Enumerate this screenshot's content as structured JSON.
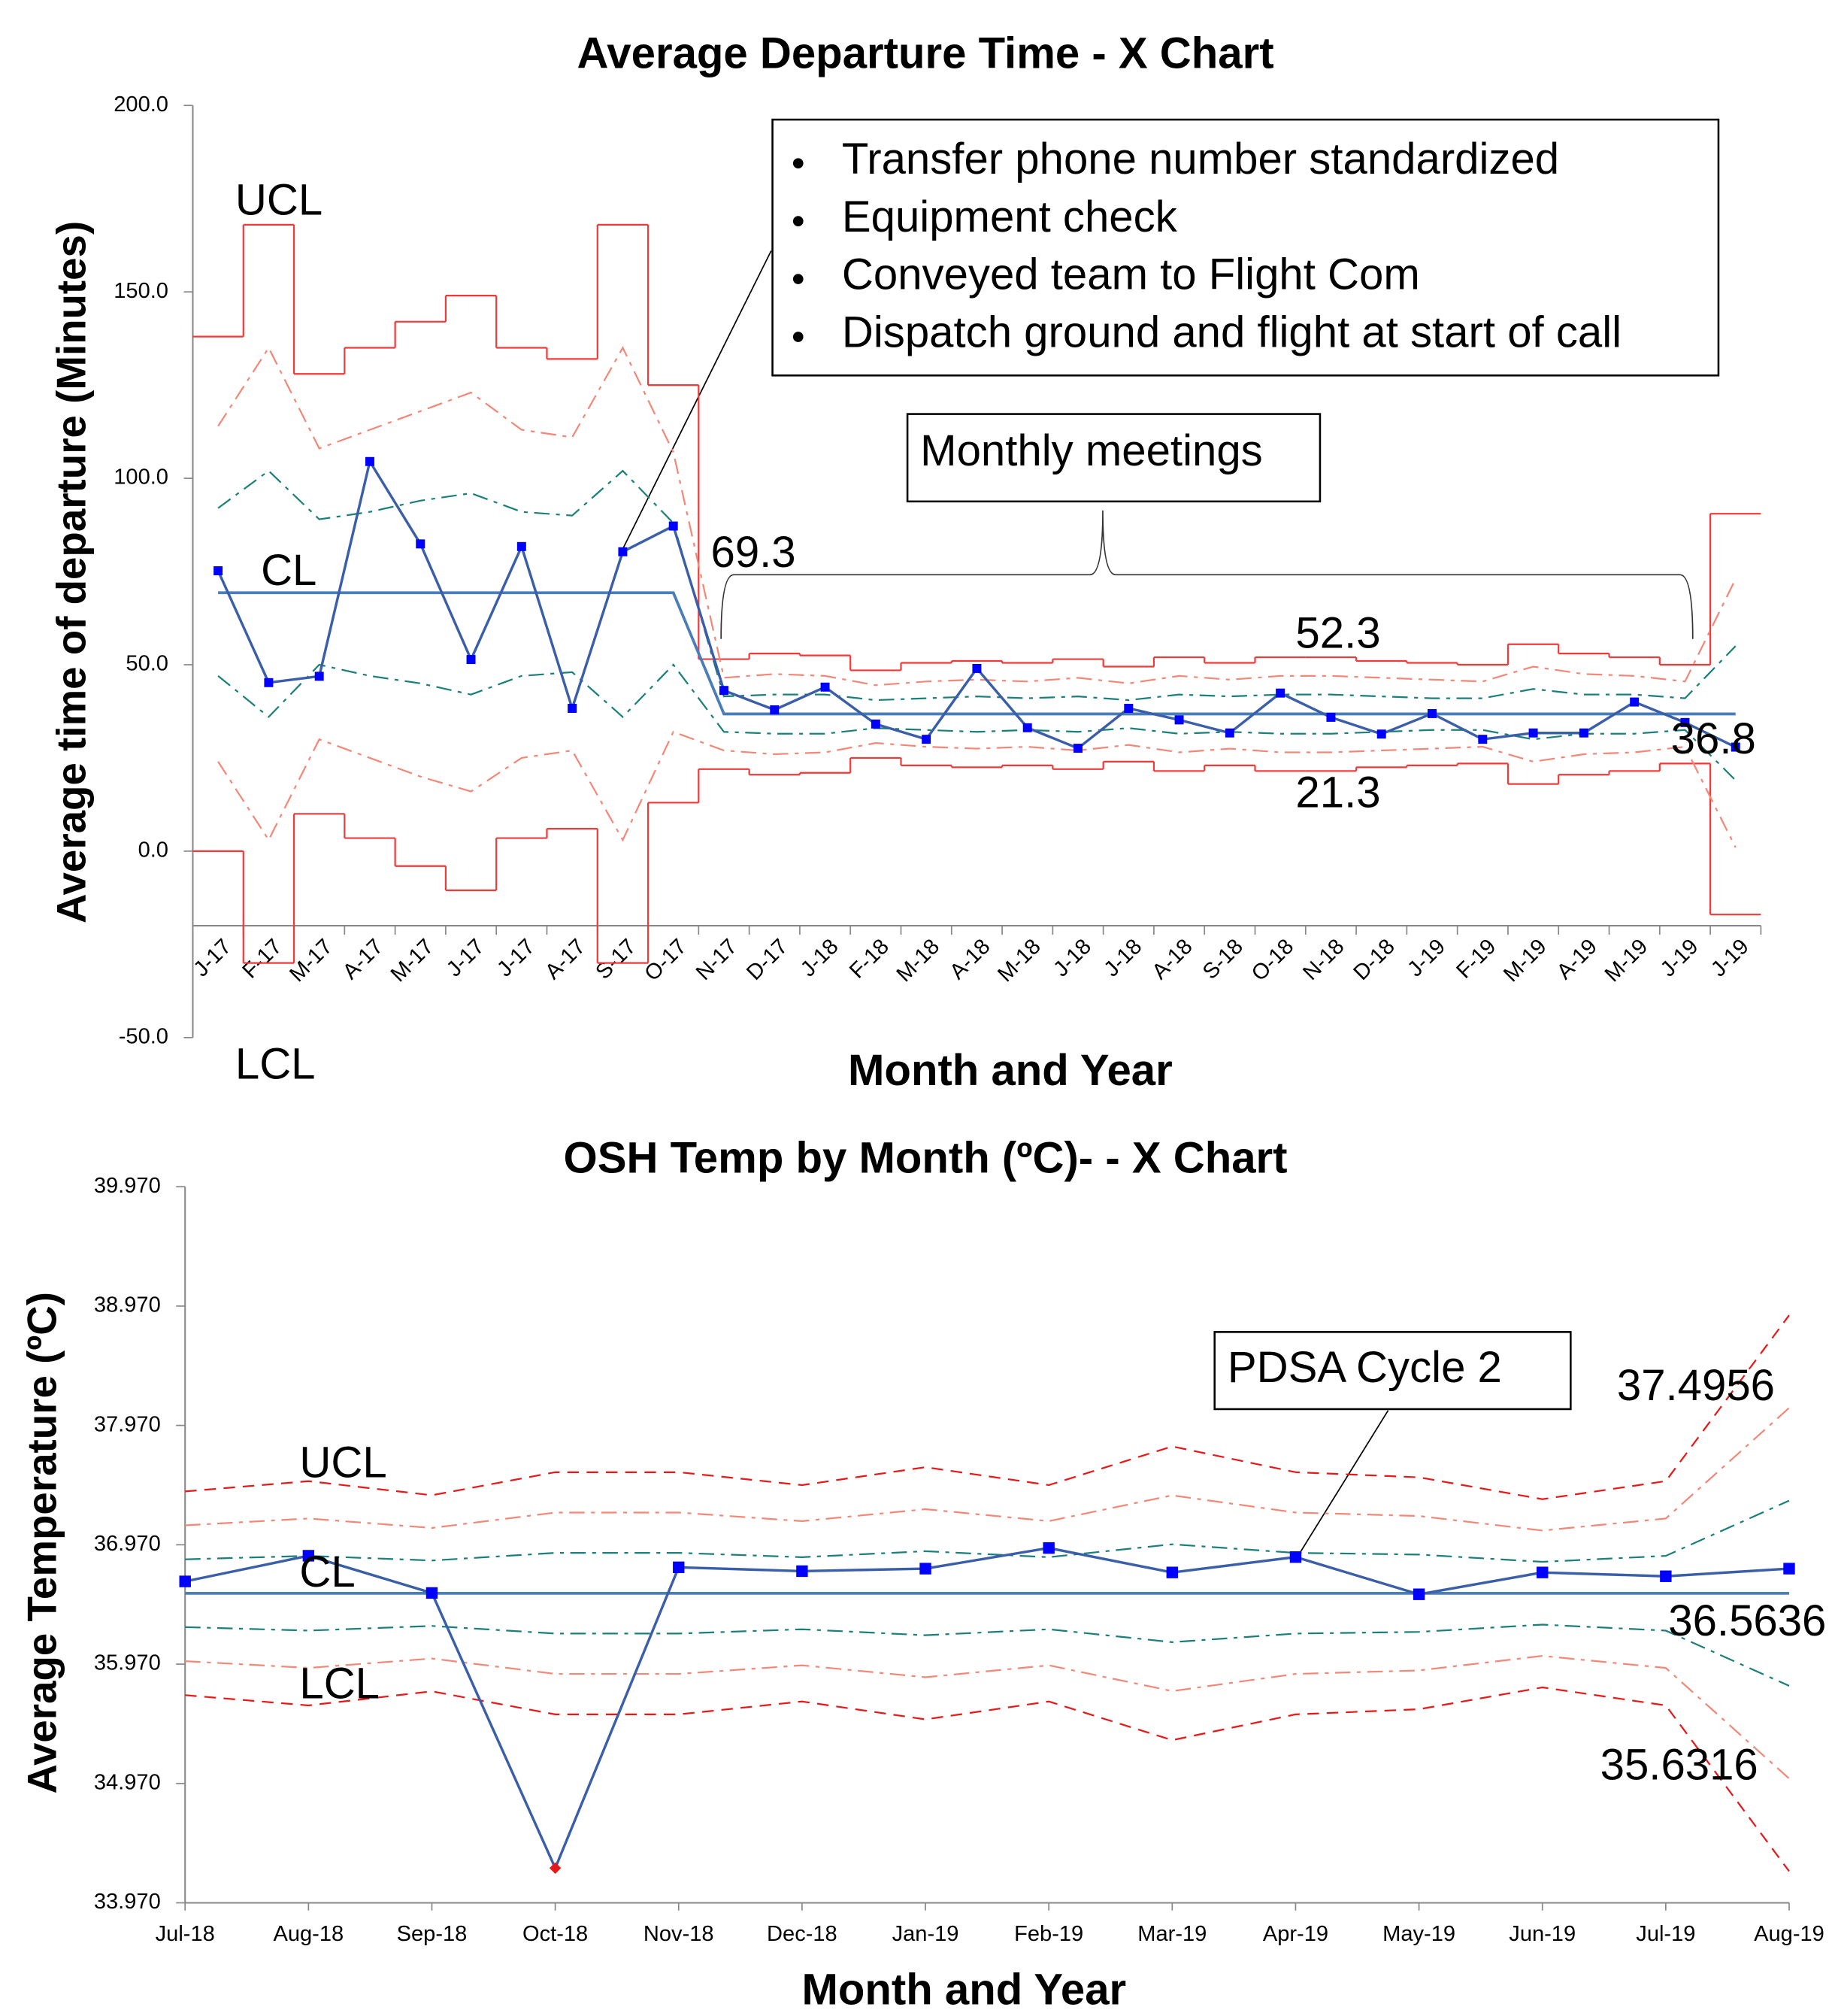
{
  "chart_data": [
    {
      "type": "line",
      "title": "Average Departure Time - X Chart",
      "y_label": "Average time of departure (Minutes)",
      "x_label": "Month and Year",
      "categories": [
        "J-17",
        "F-17",
        "M-17",
        "A-17",
        "M-17",
        "J-17",
        "J-17",
        "A-17",
        "S-17",
        "O-17",
        "N-17",
        "D-17",
        "J-18",
        "F-18",
        "M-18",
        "A-18",
        "M-18",
        "J-18",
        "J-18",
        "A-18",
        "S-18",
        "O-18",
        "N-18",
        "D-18",
        "J-19",
        "F-19",
        "M-19",
        "A-19",
        "M-19",
        "J-19",
        "J-19"
      ],
      "ylim": [
        -50,
        200
      ],
      "yticks": [
        {
          "value": -50,
          "label": "-50.0"
        },
        {
          "value": 0,
          "label": "0.0"
        },
        {
          "value": 50,
          "label": "50.0"
        },
        {
          "value": 100,
          "label": "100.0"
        },
        {
          "value": 150,
          "label": "150.0"
        },
        {
          "value": 200,
          "label": "200.0"
        }
      ],
      "x_axis_crossing": -20,
      "series": [
        {
          "line": "step",
          "color": "#f03a3a",
          "values": [
            138,
            168,
            128,
            135,
            142,
            149,
            135,
            132,
            168,
            125,
            51.5,
            53,
            52.5,
            48.5,
            50.5,
            51,
            50.5,
            51.5,
            49.5,
            52,
            50.5,
            52,
            52,
            51,
            50.5,
            50,
            55.5,
            53,
            52,
            50,
            90.5
          ]
        },
        {
          "line": "step",
          "color": "#f03a3a",
          "values": [
            0,
            -30,
            10,
            3.5,
            -4,
            -10.5,
            3.5,
            6,
            -30,
            13,
            22,
            20.5,
            21,
            25,
            23,
            22.5,
            23,
            22,
            24,
            21.5,
            23,
            21.5,
            21.5,
            22.5,
            23,
            23.5,
            18,
            20.5,
            21.5,
            23.5,
            -17
          ]
        },
        {
          "line": "dashdot",
          "color": "#f28878",
          "values": [
            114,
            135,
            108,
            113,
            118,
            123,
            113,
            111,
            135,
            107,
            46.5,
            47.5,
            47,
            44.5,
            45.5,
            46,
            45.5,
            46.5,
            45,
            47,
            46,
            47,
            47,
            46.5,
            46,
            45.5,
            49.5,
            47.5,
            47,
            45.5,
            73
          ]
        },
        {
          "line": "dashdot",
          "color": "#f28878",
          "values": [
            24,
            3,
            30,
            25,
            20,
            16,
            25,
            27,
            3,
            32,
            27,
            26,
            26.5,
            29,
            28,
            27.5,
            28,
            27,
            28.5,
            26.5,
            27.5,
            26.5,
            26.5,
            27,
            27.5,
            28,
            24,
            26,
            26.5,
            28,
            1
          ]
        },
        {
          "line": "dashdot",
          "color": "#1b7f7a",
          "values": [
            92,
            102,
            89,
            91,
            94,
            96,
            91,
            90,
            102,
            88,
            41.5,
            42,
            42,
            40.5,
            41,
            41.5,
            41,
            41.5,
            40.5,
            42,
            41.5,
            42,
            42,
            41.5,
            41,
            41,
            43.5,
            42,
            42,
            41,
            55
          ]
        },
        {
          "line": "dashdot",
          "color": "#1b7f7a",
          "values": [
            47,
            36,
            50,
            47,
            45,
            42,
            47,
            48,
            36,
            50,
            32,
            31.5,
            31.5,
            33,
            32.5,
            32,
            32.5,
            32,
            33,
            31.5,
            32,
            31.5,
            31.5,
            32,
            32.5,
            32.5,
            30,
            31.5,
            31.5,
            32.5,
            19
          ]
        },
        {
          "line": "solid",
          "color": "#4a7ebb",
          "values": [
            69.3,
            69.3,
            69.3,
            69.3,
            69.3,
            69.3,
            69.3,
            69.3,
            69.3,
            69.3,
            36.8,
            36.8,
            36.8,
            36.8,
            36.8,
            36.8,
            36.8,
            36.8,
            36.8,
            36.8,
            36.8,
            36.8,
            36.8,
            36.8,
            36.8,
            36.8,
            36.8,
            36.8,
            36.8,
            36.8,
            36.8
          ]
        },
        {
          "line": "solid",
          "color": "#3a5fa8",
          "marker_color": "#0000ff",
          "values": [
            75.2,
            45.2,
            46.9,
            104.5,
            82.4,
            51.4,
            81.7,
            38.3,
            80.3,
            87.2,
            43.1,
            37.9,
            44.0,
            34.1,
            30.0,
            49.0,
            33.1,
            27.6,
            38.3,
            35.2,
            31.7,
            42.4,
            35.9,
            31.4,
            36.9,
            30.0,
            31.7,
            31.7,
            40.0,
            34.5,
            27.9
          ]
        }
      ],
      "annotations": [
        "UCL",
        "CL",
        "LCL",
        "69.3",
        "52.3",
        "21.3",
        "36.8"
      ],
      "notes": [
        "Transfer phone number standardized",
        "Equipment check",
        "Conveyed team to Flight Com",
        "Dispatch ground and flight at start of call"
      ],
      "callout": "Monthly meetings"
    },
    {
      "type": "line",
      "title": "OSH Temp by Month (ºC)- - X Chart",
      "y_label": "Average Temperature (ºC)",
      "x_label": "Month and Year",
      "categories": [
        "Jul-18",
        "Aug-18",
        "Sep-18",
        "Oct-18",
        "Nov-18",
        "Dec-18",
        "Jan-19",
        "Feb-19",
        "Mar-19",
        "Apr-19",
        "May-19",
        "Jun-19",
        "Jul-19",
        "Aug-19"
      ],
      "ylim": [
        33.97,
        39.97
      ],
      "yticks": [
        {
          "value": 33.97,
          "label": "33.970"
        },
        {
          "value": 34.97,
          "label": "34.970"
        },
        {
          "value": 35.97,
          "label": "35.970"
        },
        {
          "value": 36.97,
          "label": "36.970"
        },
        {
          "value": 37.97,
          "label": "37.970"
        },
        {
          "value": 38.97,
          "label": "38.970"
        },
        {
          "value": 39.97,
          "label": "39.970"
        }
      ],
      "series": [
        {
          "line": "dashed",
          "color": "#e81818",
          "values": [
            37.417,
            37.503,
            37.385,
            37.578,
            37.578,
            37.47,
            37.62,
            37.47,
            37.794,
            37.578,
            37.535,
            37.352,
            37.503,
            38.893
          ]
        },
        {
          "line": "dashed",
          "color": "#e81818",
          "values": [
            35.71,
            35.624,
            35.742,
            35.549,
            35.549,
            35.657,
            35.507,
            35.657,
            35.333,
            35.549,
            35.592,
            35.775,
            35.624,
            34.234
          ]
        },
        {
          "line": "dashdot",
          "color": "#f28878",
          "values": [
            37.133,
            37.19,
            37.111,
            37.24,
            37.24,
            37.168,
            37.268,
            37.168,
            37.384,
            37.24,
            37.211,
            37.089,
            37.19,
            38.117
          ]
        },
        {
          "line": "dashdot",
          "color": "#f28878",
          "values": [
            35.995,
            35.938,
            36.017,
            35.888,
            35.888,
            35.96,
            35.86,
            35.96,
            35.744,
            35.888,
            35.917,
            36.039,
            35.938,
            35.011
          ]
        },
        {
          "line": "dashdot",
          "color": "#1b7f7a",
          "values": [
            36.848,
            36.877,
            36.838,
            36.902,
            36.902,
            36.866,
            36.916,
            36.866,
            36.974,
            36.902,
            36.888,
            36.827,
            36.877,
            37.34
          ]
        },
        {
          "line": "dashdot",
          "color": "#1b7f7a",
          "values": [
            36.28,
            36.251,
            36.29,
            36.226,
            36.226,
            36.262,
            36.212,
            36.262,
            36.154,
            36.226,
            36.24,
            36.301,
            36.251,
            35.788
          ]
        },
        {
          "line": "solid",
          "color": "#4a7ebb",
          "values": [
            36.5636,
            36.5636,
            36.5636,
            36.5636,
            36.5636,
            36.5636,
            36.5636,
            36.5636,
            36.5636,
            36.5636,
            36.5636,
            36.5636,
            36.5636,
            36.5636
          ]
        },
        {
          "line": "solid",
          "color": "#3a5fa8",
          "marker_color": "#0000ff",
          "marker_colors": [
            "#0000ff",
            "#0000ff",
            "#0000ff",
            "#e81818",
            "#0000ff",
            "#0000ff",
            "#0000ff",
            "#0000ff",
            "#0000ff",
            "#0000ff",
            "#0000ff",
            "#0000ff",
            "#0000ff",
            "#0000ff"
          ],
          "values": [
            36.663,
            36.878,
            36.566,
            34.261,
            36.781,
            36.749,
            36.77,
            36.943,
            36.738,
            36.867,
            36.555,
            36.738,
            36.706,
            36.77
          ]
        }
      ],
      "annotations": [
        "UCL",
        "CL",
        "LCL",
        "37.4956",
        "36.5636",
        "35.6316"
      ],
      "callout": "PDSA Cycle 2"
    }
  ]
}
